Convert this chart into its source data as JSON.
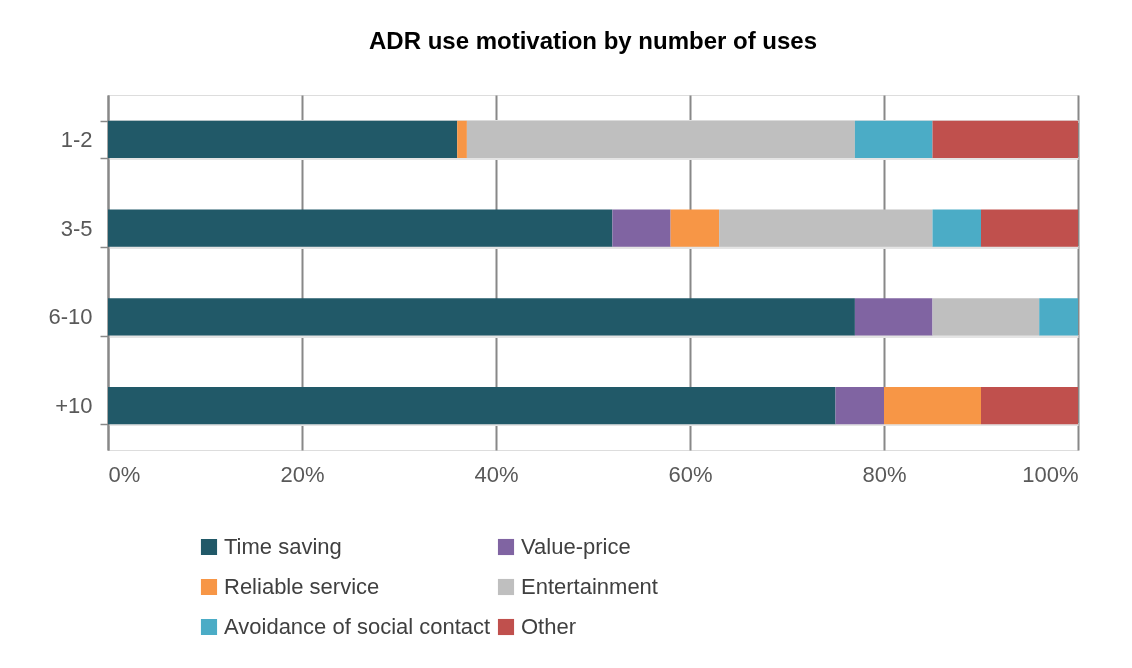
{
  "chart_data": {
    "type": "bar",
    "orientation": "horizontal",
    "stacked": true,
    "title": "ADR use motivation by number of uses",
    "categories": [
      "1-2",
      "3-5",
      "6-10",
      "+10"
    ],
    "series": [
      {
        "name": "Time saving",
        "color": "#215968",
        "values": [
          36,
          52,
          77,
          75
        ]
      },
      {
        "name": "Value-price",
        "color": "#8064a2",
        "values": [
          null,
          6,
          8,
          5
        ]
      },
      {
        "name": "Reliable service",
        "color": "#f79646",
        "values": [
          1,
          5,
          null,
          10
        ]
      },
      {
        "name": "Entertainment",
        "color": "#bfbfbf",
        "values": [
          40,
          22,
          11,
          null
        ]
      },
      {
        "name": "Avoidance of social contact",
        "color": "#4bacc6",
        "values": [
          8,
          5,
          4,
          null
        ]
      },
      {
        "name": "Other",
        "color": "#c0504d",
        "values": [
          15,
          10,
          null,
          10
        ]
      }
    ],
    "xlim": [
      0,
      100
    ],
    "xticks": [
      {
        "value": 0,
        "label": "0%"
      },
      {
        "value": 20,
        "label": "20%"
      },
      {
        "value": 40,
        "label": "40%"
      },
      {
        "value": 60,
        "label": "60%"
      },
      {
        "value": 80,
        "label": "80%"
      },
      {
        "value": 100,
        "label": "100%"
      }
    ],
    "grid": true,
    "legend": "bottom"
  }
}
